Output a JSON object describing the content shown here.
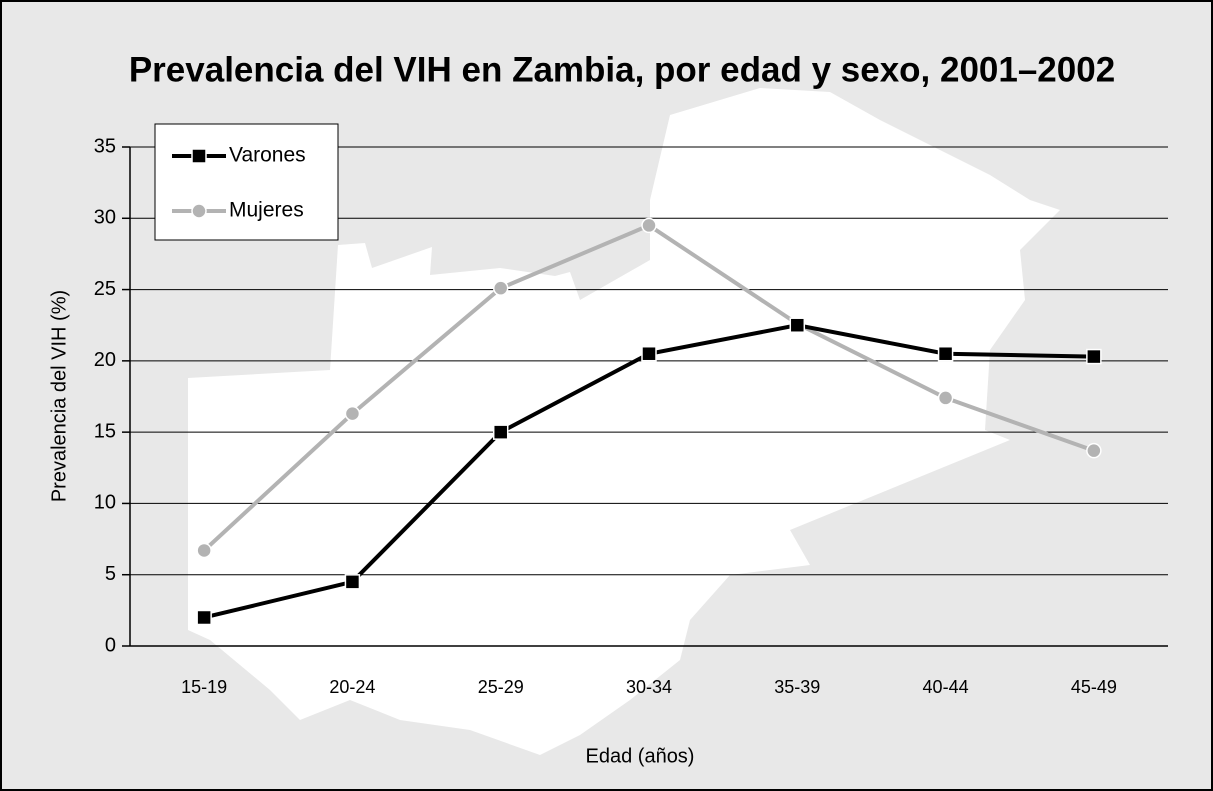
{
  "chart_data": {
    "type": "line",
    "title": "Prevalencia del VIH en Zambia, por edad y sexo, 2001–2002",
    "x_label": "Edad (años)",
    "y_label": "Prevalencia del VIH (%)",
    "categories": [
      "15-19",
      "20-24",
      "25-29",
      "30-34",
      "35-39",
      "40-44",
      "45-49"
    ],
    "series": [
      {
        "name": "Varones",
        "color": "#000000",
        "marker": "square",
        "values": [
          2.0,
          4.5,
          15.0,
          20.5,
          22.5,
          20.5,
          20.3
        ]
      },
      {
        "name": "Mujeres",
        "color": "#b3b3b3",
        "marker": "circle",
        "values": [
          6.7,
          16.3,
          25.1,
          29.5,
          22.6,
          17.4,
          13.7
        ]
      }
    ],
    "ylim": [
      0,
      35
    ],
    "yticks": [
      0,
      5,
      10,
      15,
      20,
      25,
      30,
      35
    ],
    "grid": true,
    "legend": "upper left"
  }
}
